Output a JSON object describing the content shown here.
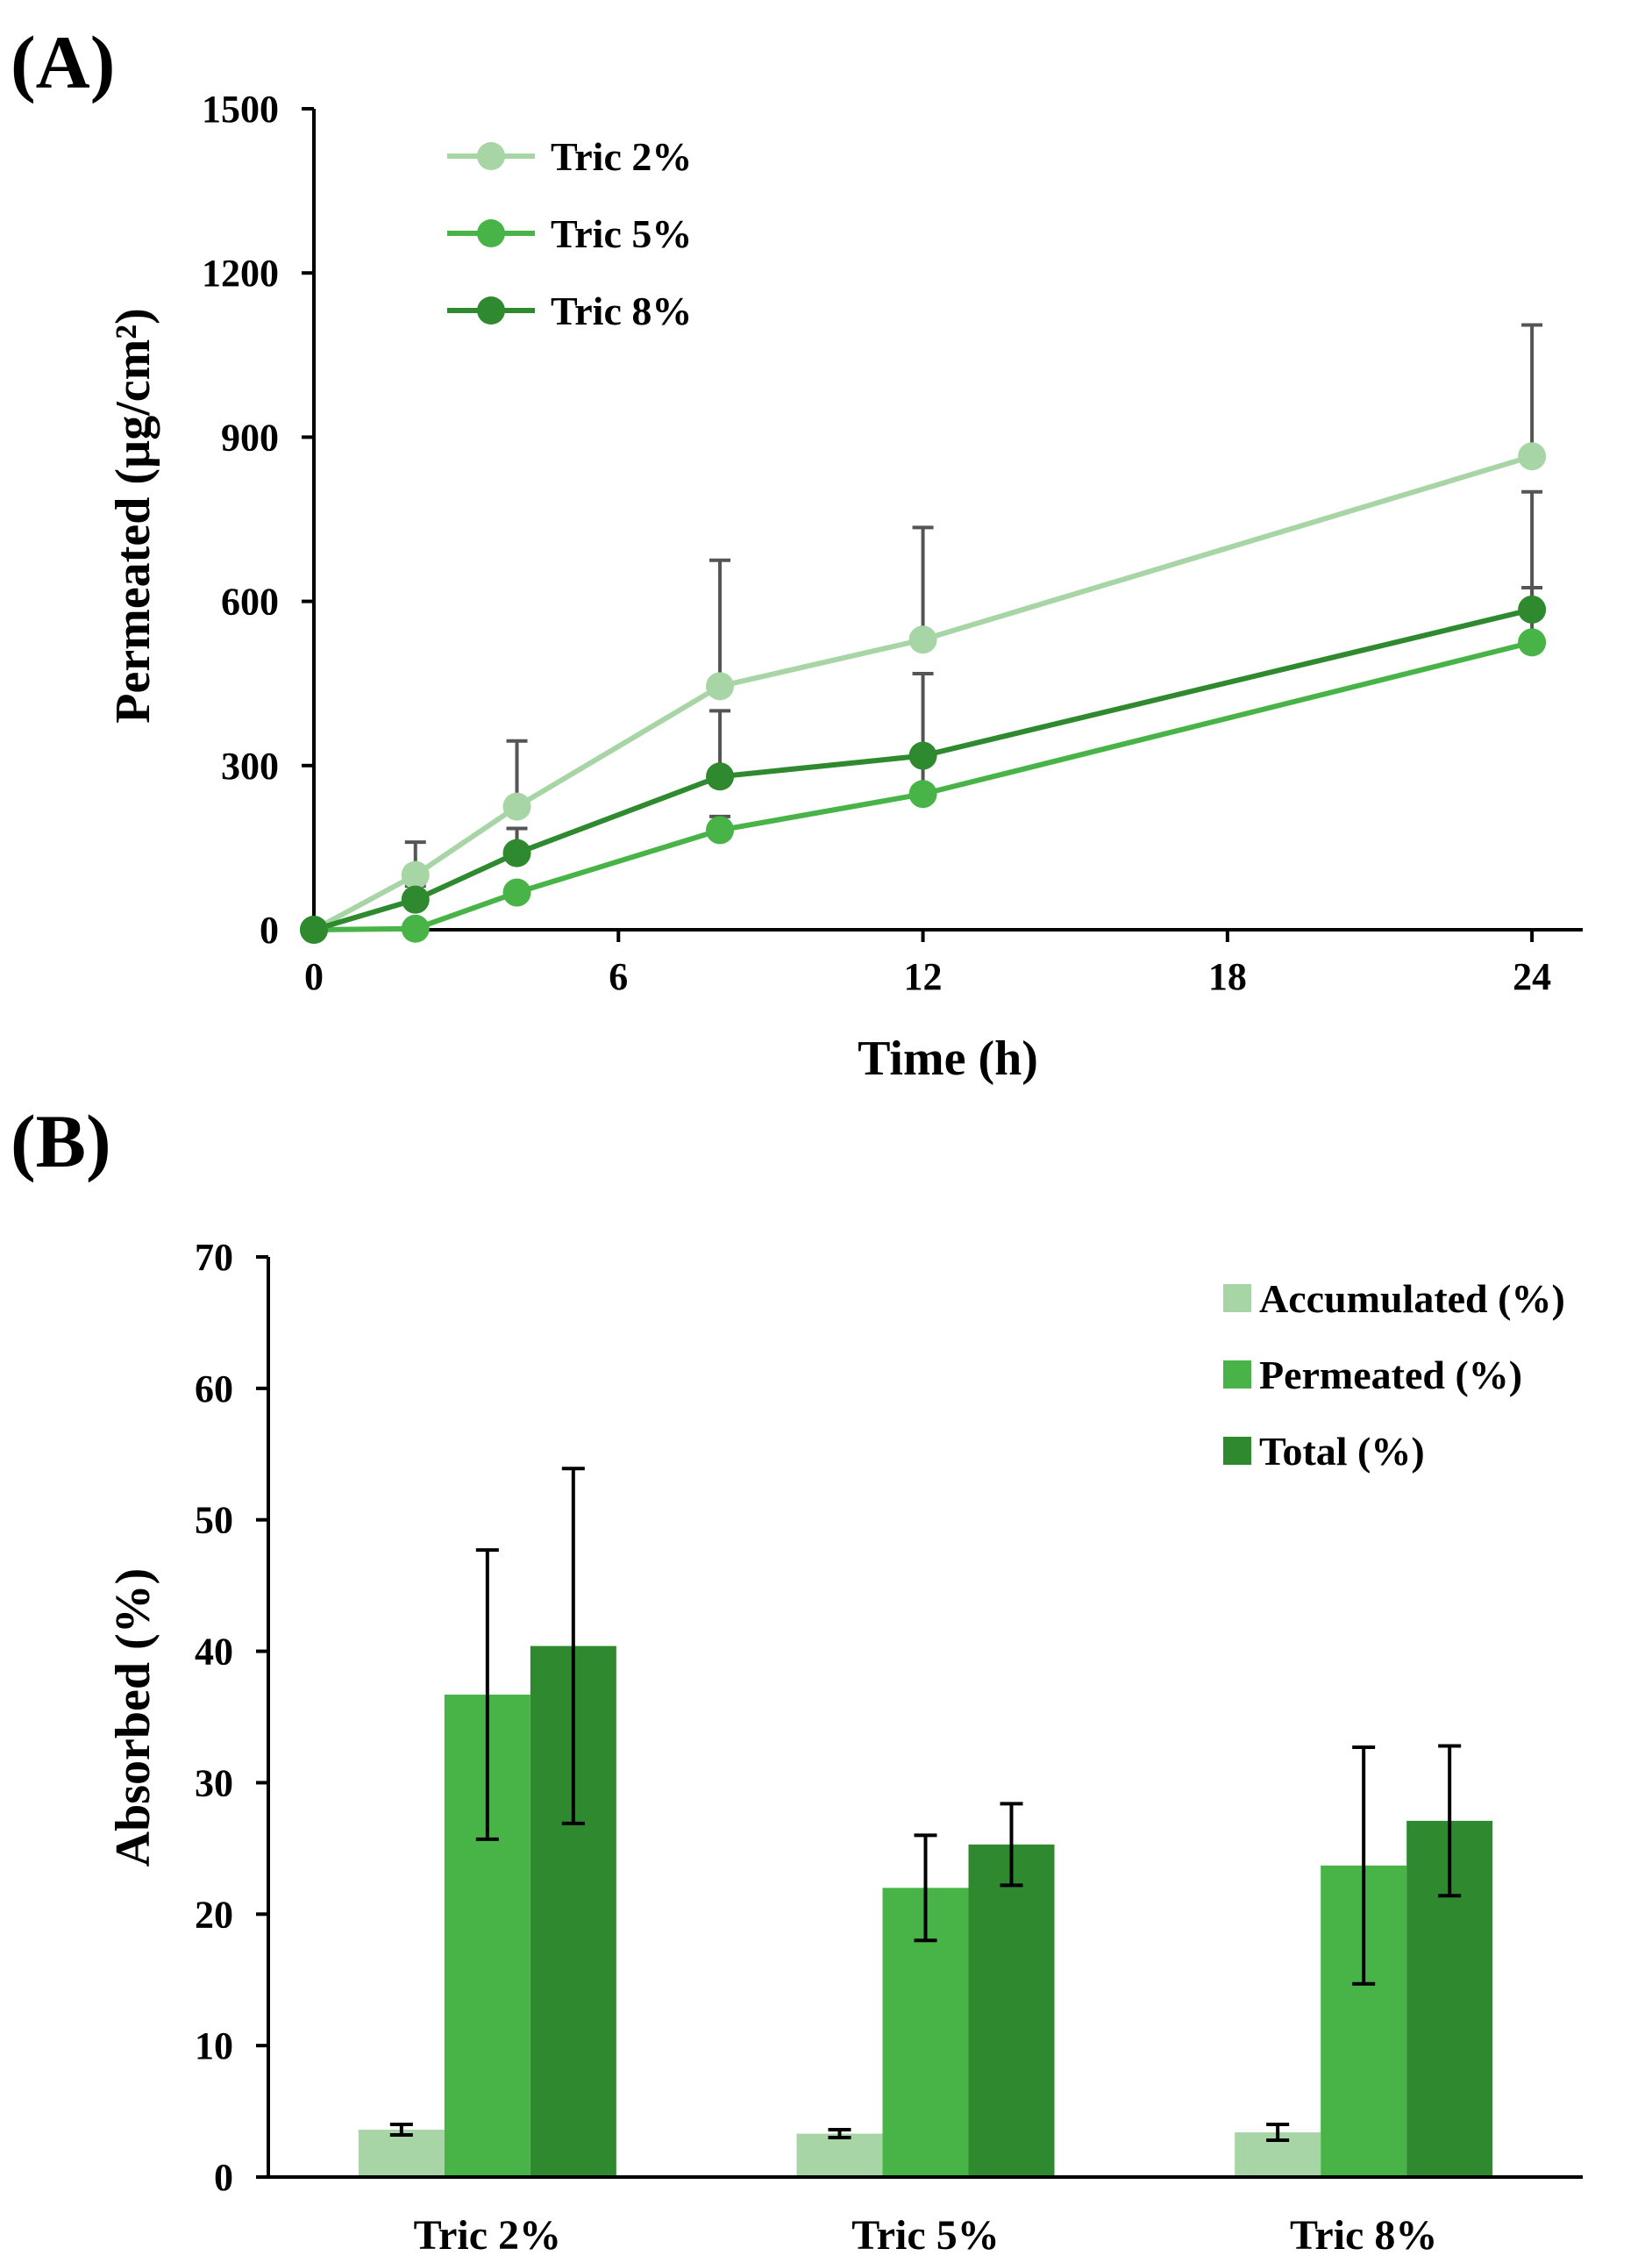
{
  "panels": {
    "a_label": "(A)",
    "b_label": "(B)"
  },
  "chart_data": [
    {
      "type": "line",
      "panel": "A",
      "title": "",
      "xlabel": "Time (h)",
      "ylabel": "Permeated (µg/cm²)",
      "xlim": [
        0,
        25
      ],
      "ylim": [
        0,
        1500
      ],
      "xticks": [
        0,
        6,
        12,
        18,
        24
      ],
      "yticks": [
        0,
        300,
        600,
        900,
        1200,
        1500
      ],
      "x": [
        0,
        2,
        4,
        8,
        12,
        24
      ],
      "grid": false,
      "legend_position": "top-left",
      "series": [
        {
          "name": "Tric 2%",
          "color": "#a8d5a6",
          "values": [
            0,
            100,
            225,
            445,
            530,
            865
          ],
          "errors": [
            0,
            60,
            120,
            230,
            205,
            240
          ]
        },
        {
          "name": "Tric 5%",
          "color": "#48b448",
          "values": [
            0,
            2,
            68,
            182,
            248,
            525
          ],
          "errors": [
            0,
            0,
            0,
            25,
            80,
            100
          ]
        },
        {
          "name": "Tric 8%",
          "color": "#2f8a2f",
          "values": [
            0,
            55,
            140,
            280,
            318,
            585
          ],
          "errors": [
            0,
            25,
            45,
            120,
            150,
            215
          ]
        }
      ]
    },
    {
      "type": "bar",
      "panel": "B",
      "title": "",
      "xlabel": "",
      "ylabel": "Absorbed (%)",
      "ylim": [
        0,
        70
      ],
      "yticks": [
        0,
        10,
        20,
        30,
        40,
        50,
        60,
        70
      ],
      "categories": [
        "Tric 2%",
        "Tric 5%",
        "Tric 8%"
      ],
      "grid": false,
      "legend_position": "top-right",
      "series": [
        {
          "name": "Accumulated (%)",
          "color": "#a8d5a6",
          "values": [
            3.6,
            3.3,
            3.4
          ],
          "errors": [
            0.4,
            0.3,
            0.6
          ]
        },
        {
          "name": "Permeated (%)",
          "color": "#48b448",
          "values": [
            36.7,
            22.0,
            23.7
          ],
          "errors": [
            11.0,
            4.0,
            9.0
          ]
        },
        {
          "name": "Total (%)",
          "color": "#2f8a2f",
          "values": [
            40.4,
            25.3,
            27.1
          ],
          "errors": [
            13.5,
            3.1,
            5.7
          ]
        }
      ]
    }
  ]
}
